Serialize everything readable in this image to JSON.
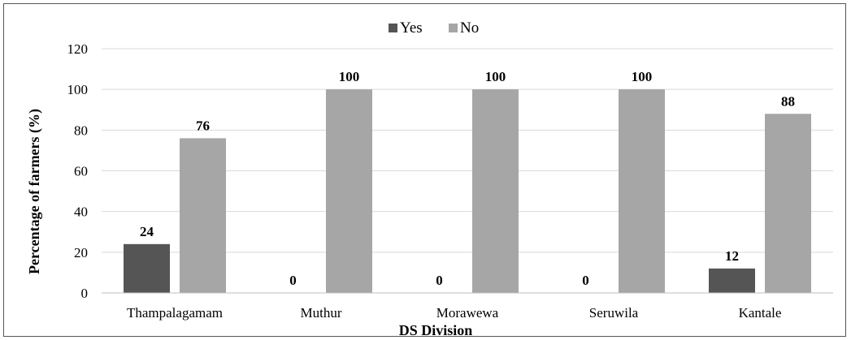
{
  "chart_data": {
    "type": "bar",
    "categories": [
      "Thampalagamam",
      "Muthur",
      "Morawewa",
      "Seruwila",
      "Kantale"
    ],
    "series": [
      {
        "name": "Yes",
        "values": [
          24,
          0,
          0,
          0,
          12
        ],
        "color": "#555555"
      },
      {
        "name": "No",
        "values": [
          76,
          100,
          100,
          100,
          88
        ],
        "color": "#a6a6a6"
      }
    ],
    "data_labels": {
      "Yes": [
        "24",
        "0",
        "0",
        "0",
        "12"
      ],
      "No": [
        "76",
        "100",
        "100",
        "100",
        "88"
      ]
    },
    "xlabel": "DS Division",
    "ylabel": "Percentage of farmers (%)",
    "ylim": [
      0,
      120
    ],
    "yticks": [
      0,
      20,
      40,
      60,
      80,
      100,
      120
    ],
    "grid": true,
    "legend_position": "top-center"
  }
}
